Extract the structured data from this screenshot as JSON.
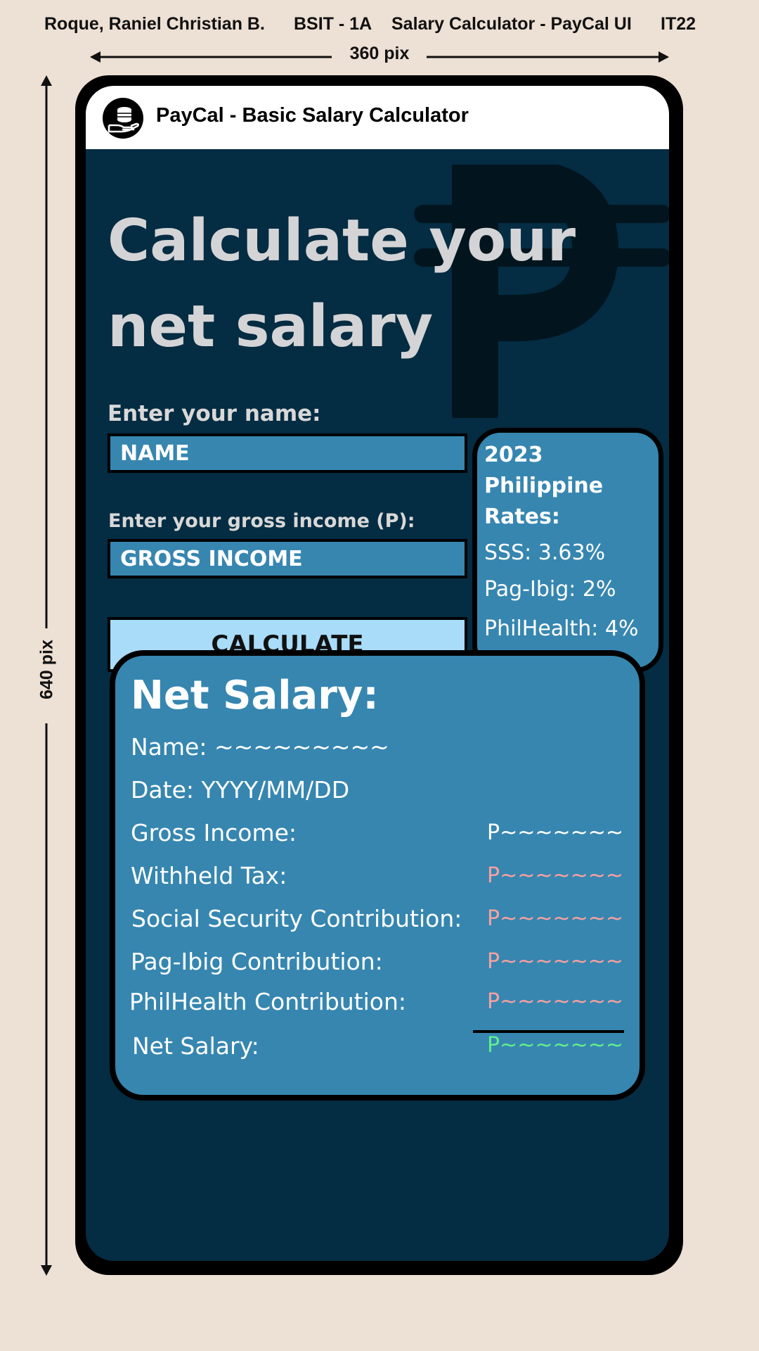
{
  "caption": {
    "author": "Roque, Raniel Christian B.",
    "section": "BSIT - 1A",
    "project": "Salary Calculator - PayCal UI",
    "course": "IT22",
    "width_label": "360 pix",
    "height_label": "640 pix"
  },
  "header": {
    "title": "PayCal - Basic Salary Calculator",
    "logo_icon": "coins-hand-icon"
  },
  "hero": {
    "line1": "Calculate your",
    "line2": "net salary",
    "watermark_icon": "peso-sign-icon"
  },
  "form": {
    "name_label": "Enter your name:",
    "name_placeholder": "NAME",
    "income_label": "Enter your gross income (P):",
    "income_placeholder": "GROSS INCOME",
    "calculate_label": "CALCULATE"
  },
  "rates": {
    "title_line1": "2023",
    "title_line2": "Philippine",
    "title_line3": "Rates:",
    "sss": "SSS: 3.63%",
    "pagibig": "Pag-Ibig: 2%",
    "philhealth": "PhilHealth: 4%"
  },
  "result": {
    "title": "Net Salary:",
    "name": "Name: ~~~~~~~~~",
    "date": "Date: YYYY/MM/DD",
    "rows": [
      {
        "label": "Gross Income:",
        "value": "P~~~~~~~"
      },
      {
        "label": "Withheld Tax:",
        "value": "P~~~~~~~"
      },
      {
        "label": "Social Security Contribution:",
        "value": "P~~~~~~~"
      },
      {
        "label": "Pag-Ibig Contribution:",
        "value": "P~~~~~~~"
      },
      {
        "label": "PhilHealth Contribution:",
        "value": "P~~~~~~~"
      },
      {
        "label": "Net Salary:",
        "value": "P~~~~~~~"
      }
    ]
  },
  "colors": {
    "background": "#ede0d4",
    "screen": "#042c42",
    "panel": "#3686b0",
    "button": "#a8dcf8",
    "deduction": "#f5a0a0",
    "net": "#60ee8c"
  }
}
